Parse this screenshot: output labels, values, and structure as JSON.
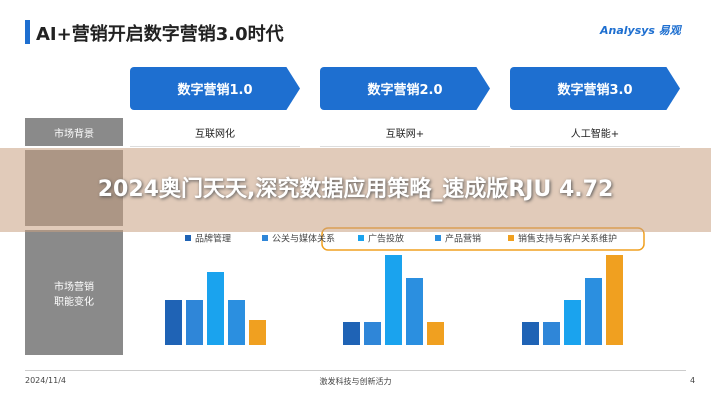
{
  "header": {
    "title": "AI+营销开启数字营销3.0时代",
    "logo": "Analysys 易观"
  },
  "stages": [
    "数字营销1.0",
    "数字营销2.0",
    "数字营销3.0"
  ],
  "rows": [
    {
      "label": "市场背景",
      "cells": [
        "互联网化",
        "互联网+",
        "人工智能+"
      ]
    },
    {
      "label": "市场营销职能变化"
    }
  ],
  "chart_data": {
    "type": "bar",
    "series": [
      {
        "name": "品牌管理",
        "color": "#1f63b5",
        "values": [
          45,
          23,
          23
        ]
      },
      {
        "name": "公关与媒体关系",
        "color": "#2f86d8",
        "values": [
          45,
          23,
          23
        ]
      },
      {
        "name": "广告投放",
        "color": "#1aa3ee",
        "values": [
          73,
          90,
          45
        ]
      },
      {
        "name": "产品营销",
        "color": "#2b8fe0",
        "values": [
          45,
          67,
          67
        ]
      },
      {
        "name": "销售支持与客户关系维护",
        "color": "#f0a020",
        "values": [
          25,
          23,
          90
        ]
      }
    ]
  },
  "footer": {
    "date": "2024/11/4",
    "center": "激发科技与创新活力",
    "page": "4"
  },
  "banner": "2024奥门天天,深究数据应用策略_速成版RJU 4.72"
}
